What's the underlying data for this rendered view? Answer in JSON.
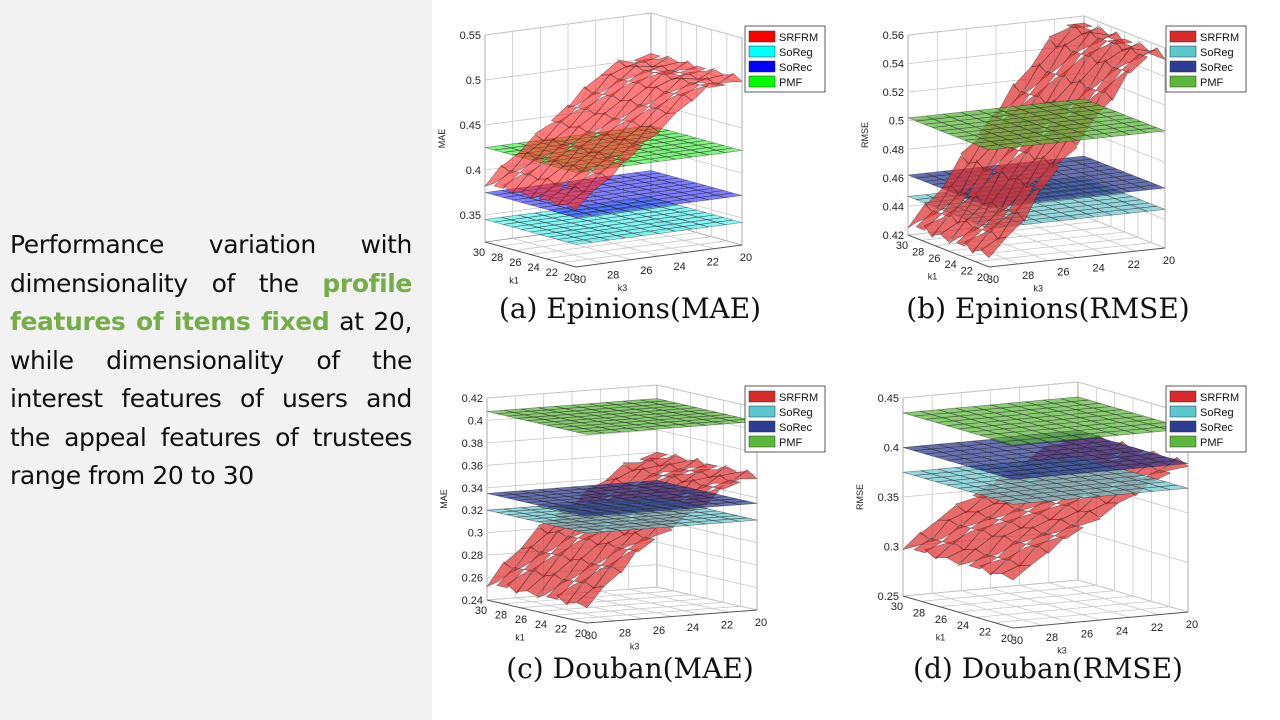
{
  "description": {
    "parts": [
      {
        "text": "Performance variation with dimensionality of the ",
        "highlight": false
      },
      {
        "text": "profile features of items fixed",
        "highlight": true
      },
      {
        "text": " at 20, while dimensionality of the interest features of users and the appeal features of trustees range from 20 to 30",
        "highlight": false
      }
    ]
  },
  "colors": {
    "background": "#ffffff",
    "left_panel": "#f2f2f2",
    "highlight": "#76ad48"
  },
  "chart_data": [
    {
      "type": "surface3d",
      "caption": "(a) Epinions(MAE)",
      "ylabel": "MAE",
      "xlabel": "k3",
      "zlabel": "k1",
      "k1_ticks": [
        "30",
        "28",
        "26",
        "24",
        "22",
        "20"
      ],
      "k3_ticks": [
        "30",
        "28",
        "26",
        "24",
        "22",
        "20"
      ],
      "ylim": [
        0.32,
        0.55
      ],
      "y_ticks": [
        "0.35",
        "0.4",
        "0.45",
        "0.5",
        "0.55"
      ],
      "legend": [
        {
          "name": "SRFRM",
          "color": "#ff0000"
        },
        {
          "name": "SoReg",
          "color": "#00ffff"
        },
        {
          "name": "SoRec",
          "color": "#0000ff"
        },
        {
          "name": "PMF",
          "color": "#00ff00"
        }
      ],
      "series": [
        {
          "name": "SRFRM",
          "color": "#ff2a2a",
          "opacity": 0.62,
          "values": [
            0.385,
            0.4,
            0.415,
            0.43,
            0.445,
            0.46,
            0.475,
            0.49,
            0.5,
            0.5,
            0.505
          ]
        },
        {
          "name": "SoReg",
          "color": "#40f0f0",
          "opacity": 0.62,
          "values": [
            0.345
          ]
        },
        {
          "name": "SoRec",
          "color": "#3030ff",
          "opacity": 0.62,
          "values": [
            0.375
          ]
        },
        {
          "name": "PMF",
          "color": "#33ee33",
          "opacity": 0.62,
          "values": [
            0.425
          ]
        }
      ]
    },
    {
      "type": "surface3d",
      "caption": "(b) Epinions(RMSE)",
      "ylabel": "RMSE",
      "xlabel": "k3",
      "zlabel": "k1",
      "k1_ticks": [
        "30",
        "28",
        "26",
        "24",
        "22",
        "20"
      ],
      "k3_ticks": [
        "30",
        "28",
        "26",
        "24",
        "22",
        "20"
      ],
      "ylim": [
        0.42,
        0.56
      ],
      "y_ticks": [
        "0.42",
        "0.44",
        "0.46",
        "0.48",
        "0.5",
        "0.52",
        "0.54",
        "0.56"
      ],
      "legend": [
        {
          "name": "SRFRM",
          "color": "#d92b2b"
        },
        {
          "name": "SoReg",
          "color": "#5bc8d0"
        },
        {
          "name": "SoRec",
          "color": "#2e3d94"
        },
        {
          "name": "PMF",
          "color": "#5cb83a"
        }
      ],
      "series": [
        {
          "name": "SRFRM",
          "color": "#e03030",
          "opacity": 0.72,
          "values": [
            0.428,
            0.438,
            0.452,
            0.47,
            0.485,
            0.5,
            0.515,
            0.53,
            0.545,
            0.555,
            0.555
          ]
        },
        {
          "name": "SoReg",
          "color": "#6cc8d0",
          "opacity": 0.72,
          "values": [
            0.447
          ]
        },
        {
          "name": "SoRec",
          "color": "#2c3a90",
          "opacity": 0.72,
          "values": [
            0.462
          ]
        },
        {
          "name": "PMF",
          "color": "#5cb83a",
          "opacity": 0.72,
          "values": [
            0.502
          ]
        }
      ]
    },
    {
      "type": "surface3d",
      "caption": "(c) Douban(MAE)",
      "ylabel": "MAE",
      "xlabel": "k3",
      "zlabel": "k1",
      "k1_ticks": [
        "30",
        "28",
        "26",
        "24",
        "22",
        "20"
      ],
      "k3_ticks": [
        "30",
        "28",
        "26",
        "24",
        "22",
        "20"
      ],
      "ylim": [
        0.24,
        0.42
      ],
      "y_ticks": [
        "0.24",
        "0.26",
        "0.28",
        "0.3",
        "0.32",
        "0.34",
        "0.36",
        "0.38",
        "0.4",
        "0.42"
      ],
      "legend": [
        {
          "name": "SRFRM",
          "color": "#d92b2b"
        },
        {
          "name": "SoReg",
          "color": "#5bc8d0"
        },
        {
          "name": "SoRec",
          "color": "#2e3d94"
        },
        {
          "name": "PMF",
          "color": "#5cb83a"
        }
      ],
      "series": [
        {
          "name": "SRFRM",
          "color": "#e03030",
          "opacity": 0.72,
          "values": [
            0.255,
            0.27,
            0.285,
            0.3,
            0.31,
            0.32,
            0.33,
            0.34,
            0.35,
            0.355,
            0.36
          ]
        },
        {
          "name": "SoReg",
          "color": "#6cc8d0",
          "opacity": 0.72,
          "values": [
            0.32
          ]
        },
        {
          "name": "SoRec",
          "color": "#2c3a90",
          "opacity": 0.72,
          "values": [
            0.335
          ]
        },
        {
          "name": "PMF",
          "color": "#5cb83a",
          "opacity": 0.72,
          "values": [
            0.408
          ]
        }
      ]
    },
    {
      "type": "surface3d",
      "caption": "(d) Douban(RMSE)",
      "ylabel": "RMSE",
      "xlabel": "k3",
      "zlabel": "k1",
      "k1_ticks": [
        "30",
        "28",
        "26",
        "24",
        "22",
        "20"
      ],
      "k3_ticks": [
        "30",
        "28",
        "26",
        "24",
        "22",
        "20"
      ],
      "ylim": [
        0.25,
        0.45
      ],
      "y_ticks": [
        "0.25",
        "0.3",
        "0.35",
        "0.4",
        "0.45"
      ],
      "legend": [
        {
          "name": "SRFRM",
          "color": "#d92b2b"
        },
        {
          "name": "SoReg",
          "color": "#5bc8d0"
        },
        {
          "name": "SoRec",
          "color": "#2e3d94"
        },
        {
          "name": "PMF",
          "color": "#5cb83a"
        }
      ],
      "series": [
        {
          "name": "SRFRM",
          "color": "#e03030",
          "opacity": 0.72,
          "values": [
            0.3,
            0.31,
            0.325,
            0.335,
            0.345,
            0.355,
            0.365,
            0.375,
            0.385,
            0.392,
            0.4
          ]
        },
        {
          "name": "SoReg",
          "color": "#6cc8d0",
          "opacity": 0.72,
          "values": [
            0.375
          ]
        },
        {
          "name": "SoRec",
          "color": "#2c3a90",
          "opacity": 0.72,
          "values": [
            0.4
          ]
        },
        {
          "name": "PMF",
          "color": "#5cb83a",
          "opacity": 0.72,
          "values": [
            0.435
          ]
        }
      ]
    }
  ]
}
